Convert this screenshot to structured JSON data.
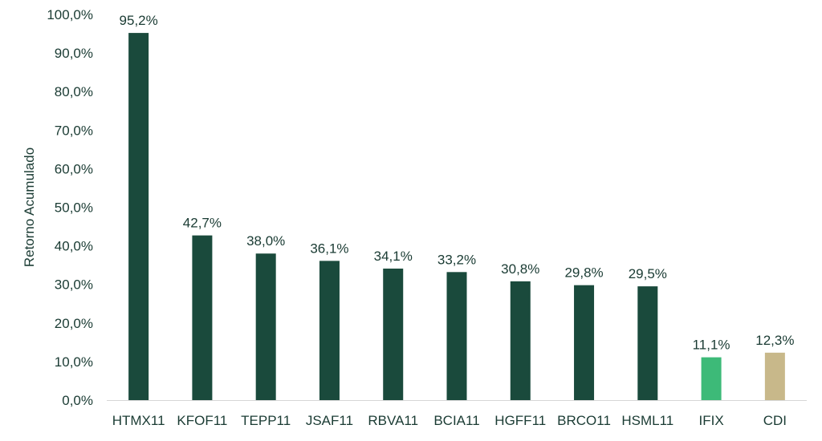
{
  "chart_data": {
    "type": "bar",
    "ylabel": "Retorno Acumulado",
    "ylim": [
      0,
      100
    ],
    "yticks": [
      "0,0%",
      "10,0%",
      "20,0%",
      "30,0%",
      "40,0%",
      "50,0%",
      "60,0%",
      "70,0%",
      "80,0%",
      "90,0%",
      "100,0%"
    ],
    "grid": false,
    "legend": "none",
    "categories": [
      "HTMX11",
      "KFOF11",
      "TEPP11",
      "JSAF11",
      "RBVA11",
      "BCIA11",
      "HGFF11",
      "BRCO11",
      "HSML11",
      "IFIX",
      "CDI"
    ],
    "values": [
      95.2,
      42.7,
      38.0,
      36.1,
      34.1,
      33.2,
      30.8,
      29.8,
      29.5,
      11.1,
      12.3
    ],
    "data_labels": [
      "95,2%",
      "42,7%",
      "38,0%",
      "36,1%",
      "34,1%",
      "33,2%",
      "30,8%",
      "29,8%",
      "29,5%",
      "11,1%",
      "12,3%"
    ],
    "colors": [
      "#1a4a3c",
      "#1a4a3c",
      "#1a4a3c",
      "#1a4a3c",
      "#1a4a3c",
      "#1a4a3c",
      "#1a4a3c",
      "#1a4a3c",
      "#1a4a3c",
      "#3dba78",
      "#c8b88a"
    ]
  },
  "colors": {
    "text": "#1a3b33",
    "axis": "#d6d6d6"
  }
}
